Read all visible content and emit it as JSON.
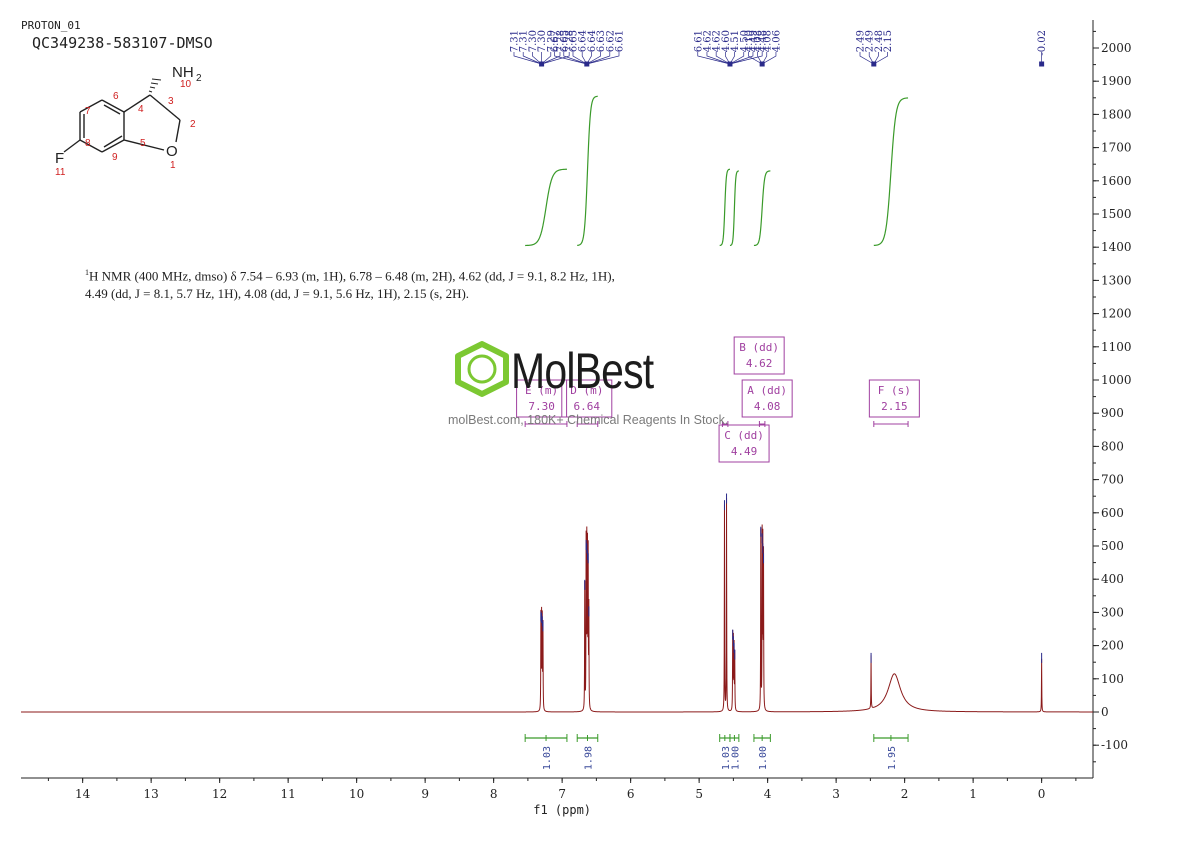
{
  "header": {
    "experiment": "PROTON_01",
    "sample": "QC349238-583107-DMSO"
  },
  "structure": {
    "amine_label": "NH",
    "amine_subscript": "2",
    "fluorine_label": "F",
    "oxygen_label": "O",
    "atom_numbers": [
      "1",
      "2",
      "3",
      "4",
      "5",
      "6",
      "7",
      "8",
      "9",
      "10",
      "11"
    ]
  },
  "nmr_description": {
    "line1_rest": "H NMR (400 MHz, dmso) δ 7.54 – 6.93 (m, 1H), 6.78 – 6.48 (m, 2H), 4.62 (dd, J = 9.1, 8.2 Hz, 1H),",
    "line1_sup": "1",
    "line2": "4.49 (dd, J = 8.1, 5.7 Hz, 1H), 4.08 (dd, J = 9.1, 5.6 Hz, 1H), 2.15 (s, 2H)."
  },
  "watermark": {
    "brand": "MolBest",
    "tagline": "molBest.com, 180K+ Chemical Reagents In Stock."
  },
  "colors": {
    "spectrum": "#8b1a1a",
    "integral_curve": "#3a9a2a",
    "integral_label": "#3a4a9a",
    "peak_label": "#2a2a8a",
    "multiplet_box": "#a040a0",
    "logo_green": "#7cc832",
    "axis": "#222222"
  },
  "chart_data": {
    "type": "line",
    "title": "",
    "xlabel": "f1 (ppm)",
    "ylabel": "",
    "x_reversed": true,
    "xlim": [
      14.9,
      -0.75
    ],
    "ylim": [
      -200,
      2080
    ],
    "x_ticks": [
      14,
      13,
      12,
      11,
      10,
      9,
      8,
      7,
      6,
      5,
      4,
      3,
      2,
      1,
      0
    ],
    "y_ticks": [
      -100,
      0,
      100,
      200,
      300,
      400,
      500,
      600,
      700,
      800,
      900,
      1000,
      1100,
      1200,
      1300,
      1400,
      1500,
      1600,
      1700,
      1800,
      1900,
      2000
    ],
    "peaks": [
      {
        "shift": 7.31,
        "height": 285
      },
      {
        "shift": 7.3,
        "height": 280
      },
      {
        "shift": 7.29,
        "height": 270
      },
      {
        "shift": 7.28,
        "height": 255
      },
      {
        "shift": 6.67,
        "height": 380
      },
      {
        "shift": 6.65,
        "height": 500
      },
      {
        "shift": 6.64,
        "height": 490
      },
      {
        "shift": 6.63,
        "height": 470
      },
      {
        "shift": 6.62,
        "height": 460
      },
      {
        "shift": 6.61,
        "height": 300
      },
      {
        "shift": 4.63,
        "height": 620
      },
      {
        "shift": 4.6,
        "height": 640
      },
      {
        "shift": 4.51,
        "height": 230
      },
      {
        "shift": 4.5,
        "height": 210
      },
      {
        "shift": 4.49,
        "height": 190
      },
      {
        "shift": 4.48,
        "height": 170
      },
      {
        "shift": 4.1,
        "height": 540
      },
      {
        "shift": 4.08,
        "height": 520
      },
      {
        "shift": 4.07,
        "height": 490
      },
      {
        "shift": 4.06,
        "height": 460
      },
      {
        "shift": 2.49,
        "height": 160
      },
      {
        "shift": 0.0,
        "height": 160
      }
    ],
    "broad_peaks": [
      {
        "shift": 2.15,
        "height": 115,
        "width": 0.11
      }
    ],
    "peak_labels": [
      {
        "group": 1,
        "shifts": [
          "7.31",
          "7.31",
          "7.30",
          "7.30",
          "7.29",
          "7.28",
          "7.28"
        ],
        "target": 7.3
      },
      {
        "group": 2,
        "shifts": [
          "6.67",
          "6.65",
          "6.65",
          "6.64",
          "6.64",
          "6.63",
          "6.62",
          "6.61"
        ],
        "target": 6.64
      },
      {
        "group": 3,
        "shifts": [
          "6.61",
          "4.62",
          "4.62",
          "4.60",
          "4.51",
          "4.50",
          "4.49",
          "4.48"
        ],
        "target": 4.55
      },
      {
        "group": 4,
        "shifts": [
          "4.10",
          "4.08",
          "4.08",
          "4.06"
        ],
        "target": 4.08
      },
      {
        "group": 5,
        "shifts": [
          "2.49",
          "2.49",
          "2.48",
          "2.15"
        ],
        "target": 2.45
      },
      {
        "group": 6,
        "shifts": [
          "-0.02"
        ],
        "target": 0.0
      }
    ],
    "integrals": [
      {
        "from": 7.54,
        "to": 6.93,
        "value": "1.03",
        "low": 1405,
        "high": 1635
      },
      {
        "from": 6.78,
        "to": 6.48,
        "value": "1.98",
        "low": 1405,
        "high": 1855
      },
      {
        "from": 4.7,
        "to": 4.55,
        "value": "1.03",
        "low": 1405,
        "high": 1635
      },
      {
        "from": 4.55,
        "to": 4.42,
        "value": "1.00",
        "low": 1405,
        "high": 1630
      },
      {
        "from": 4.2,
        "to": 3.96,
        "value": "1.00",
        "low": 1405,
        "high": 1630
      },
      {
        "from": 2.45,
        "to": 1.95,
        "value": "1.95",
        "low": 1405,
        "high": 1850
      }
    ],
    "multiplets": [
      {
        "label": "E (m)",
        "shift": "7.30",
        "from": 7.54,
        "to": 6.93
      },
      {
        "label": "D (m)",
        "shift": "6.64",
        "from": 6.78,
        "to": 6.48
      },
      {
        "label": "B (dd)",
        "shift": "4.62",
        "from": 4.66,
        "to": 4.58
      },
      {
        "label": "C (dd)",
        "shift": "4.49",
        "from": 4.53,
        "to": 4.45
      },
      {
        "label": "A (dd)",
        "shift": "4.08",
        "from": 4.12,
        "to": 4.04
      },
      {
        "label": "F (s)",
        "shift": "2.15",
        "from": 2.45,
        "to": 1.95
      }
    ]
  }
}
